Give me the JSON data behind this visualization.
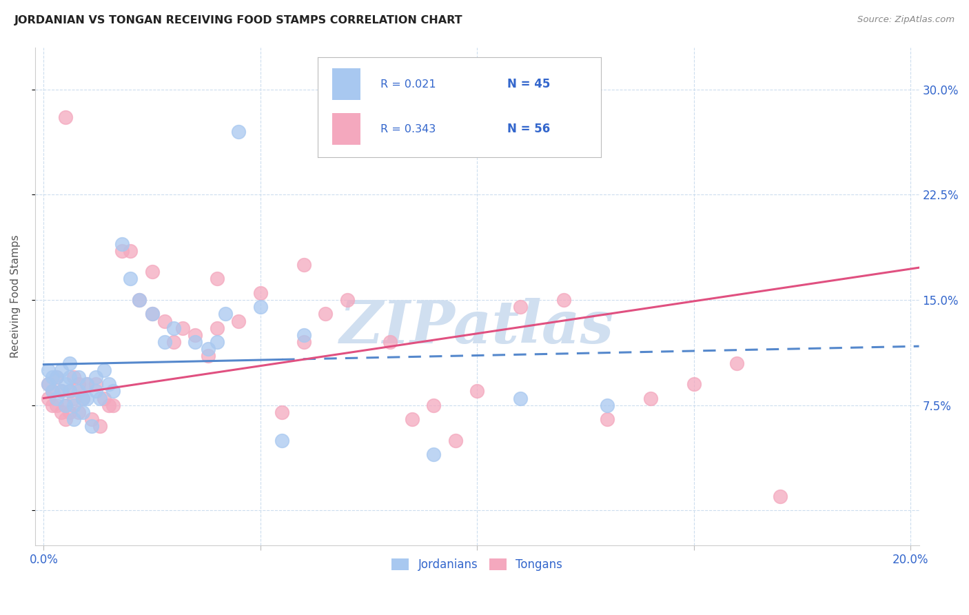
{
  "title": "JORDANIAN VS TONGAN RECEIVING FOOD STAMPS CORRELATION CHART",
  "source": "Source: ZipAtlas.com",
  "ylabel": "Receiving Food Stamps",
  "xlim": [
    -0.002,
    0.202
  ],
  "ylim": [
    -0.025,
    0.33
  ],
  "yticks": [
    0.0,
    0.075,
    0.15,
    0.225,
    0.3
  ],
  "ytick_labels": [
    "",
    "7.5%",
    "15.0%",
    "22.5%",
    "30.0%"
  ],
  "xticks": [
    0.0,
    0.05,
    0.1,
    0.15,
    0.2
  ],
  "xtick_labels": [
    "0.0%",
    "",
    "",
    "",
    "20.0%"
  ],
  "legend_r_jordanian": "R = 0.021",
  "legend_n_jordanian": "N = 45",
  "legend_r_tongan": "R = 0.343",
  "legend_n_tongan": "N = 56",
  "jordanian_color": "#a8c8f0",
  "tongan_color": "#f4a8be",
  "jordanian_line_color": "#5588cc",
  "tongan_line_color": "#e05080",
  "legend_text_color": "#3366cc",
  "watermark_color": "#d0dff0",
  "background_color": "#ffffff",
  "grid_color": "#ccddee",
  "jordanian_x": [
    0.001,
    0.001,
    0.002,
    0.002,
    0.003,
    0.003,
    0.004,
    0.004,
    0.005,
    0.005,
    0.006,
    0.006,
    0.006,
    0.007,
    0.007,
    0.008,
    0.008,
    0.009,
    0.009,
    0.01,
    0.01,
    0.011,
    0.012,
    0.012,
    0.013,
    0.014,
    0.015,
    0.016,
    0.018,
    0.02,
    0.022,
    0.025,
    0.028,
    0.03,
    0.035,
    0.038,
    0.04,
    0.042,
    0.045,
    0.05,
    0.055,
    0.06,
    0.09,
    0.11,
    0.13
  ],
  "jordanian_y": [
    0.1,
    0.09,
    0.095,
    0.085,
    0.08,
    0.095,
    0.1,
    0.085,
    0.075,
    0.09,
    0.105,
    0.085,
    0.095,
    0.075,
    0.065,
    0.085,
    0.095,
    0.08,
    0.07,
    0.08,
    0.09,
    0.06,
    0.085,
    0.095,
    0.08,
    0.1,
    0.09,
    0.085,
    0.19,
    0.165,
    0.15,
    0.14,
    0.12,
    0.13,
    0.12,
    0.115,
    0.12,
    0.14,
    0.27,
    0.145,
    0.05,
    0.125,
    0.04,
    0.08,
    0.075
  ],
  "tongan_x": [
    0.001,
    0.001,
    0.002,
    0.002,
    0.003,
    0.003,
    0.004,
    0.004,
    0.005,
    0.005,
    0.006,
    0.006,
    0.007,
    0.007,
    0.008,
    0.008,
    0.009,
    0.01,
    0.011,
    0.012,
    0.013,
    0.014,
    0.015,
    0.016,
    0.018,
    0.02,
    0.022,
    0.025,
    0.028,
    0.03,
    0.032,
    0.035,
    0.038,
    0.04,
    0.045,
    0.05,
    0.055,
    0.06,
    0.065,
    0.07,
    0.08,
    0.085,
    0.09,
    0.095,
    0.1,
    0.11,
    0.12,
    0.13,
    0.14,
    0.15,
    0.16,
    0.17,
    0.04,
    0.025,
    0.005,
    0.06
  ],
  "tongan_y": [
    0.09,
    0.08,
    0.085,
    0.075,
    0.075,
    0.095,
    0.07,
    0.085,
    0.065,
    0.075,
    0.085,
    0.07,
    0.095,
    0.08,
    0.07,
    0.09,
    0.08,
    0.09,
    0.065,
    0.09,
    0.06,
    0.08,
    0.075,
    0.075,
    0.185,
    0.185,
    0.15,
    0.14,
    0.135,
    0.12,
    0.13,
    0.125,
    0.11,
    0.13,
    0.135,
    0.155,
    0.07,
    0.12,
    0.14,
    0.15,
    0.12,
    0.065,
    0.075,
    0.05,
    0.085,
    0.145,
    0.15,
    0.065,
    0.08,
    0.09,
    0.105,
    0.01,
    0.165,
    0.17,
    0.28,
    0.175
  ],
  "jord_line_x0": 0.0,
  "jord_line_x_solid_end": 0.055,
  "jord_line_x1": 0.202,
  "jord_line_y0": 0.104,
  "jord_line_y1": 0.117,
  "tong_line_x0": 0.0,
  "tong_line_x1": 0.202,
  "tong_line_y0": 0.08,
  "tong_line_y1": 0.173
}
